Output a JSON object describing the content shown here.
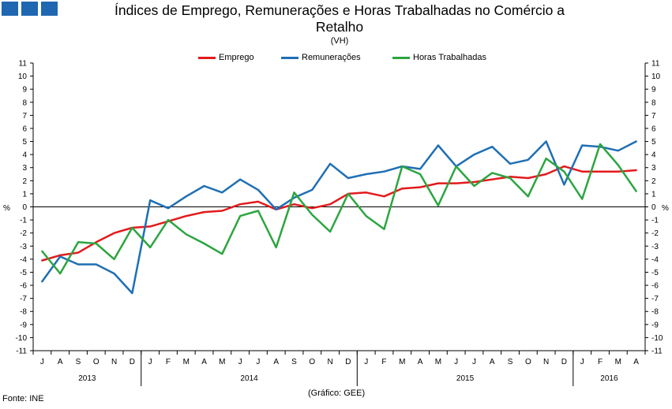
{
  "header": {
    "logo": "logo-squares",
    "title_line1": "Índices de Emprego, Remunerações e Horas Trabalhadas no Comércio a",
    "title_line2": "Retalho",
    "subtitle": "(VH)"
  },
  "axis": {
    "left_unit": "%",
    "right_unit": "%"
  },
  "footer": {
    "source": "Fonte: INE",
    "credit": "(Gráfico: GEE)"
  },
  "chart_data": {
    "type": "line",
    "title": "Índices de Emprego, Remunerações e Horas Trabalhadas no Comércio a Retalho",
    "subtitle": "(VH)",
    "ylabel": "%",
    "ylim": [
      -11,
      11
    ],
    "yticks": [
      -11,
      -10,
      -9,
      -8,
      -7,
      -6,
      -5,
      -4,
      -3,
      -2,
      -1,
      0,
      1,
      2,
      3,
      4,
      5,
      6,
      7,
      8,
      9,
      10,
      11
    ],
    "x": [
      "J",
      "A",
      "S",
      "O",
      "N",
      "D",
      "J",
      "F",
      "M",
      "A",
      "M",
      "J",
      "J",
      "A",
      "S",
      "O",
      "N",
      "D",
      "J",
      "F",
      "M",
      "A",
      "M",
      "J",
      "J",
      "A",
      "S",
      "O",
      "N",
      "D",
      "J",
      "F",
      "M",
      "A"
    ],
    "years": [
      {
        "label": "2013",
        "start": 0,
        "end": 5
      },
      {
        "label": "2014",
        "start": 6,
        "end": 17
      },
      {
        "label": "2015",
        "start": 18,
        "end": 29
      },
      {
        "label": "2016",
        "start": 30,
        "end": 33
      }
    ],
    "legend_position": "top-center",
    "series": [
      {
        "name": "Emprego",
        "color": "#e31a1c",
        "values": [
          -4.1,
          -3.7,
          -3.5,
          -2.7,
          -2.0,
          -1.6,
          -1.5,
          -1.1,
          -0.7,
          -0.4,
          -0.3,
          0.2,
          0.4,
          -0.2,
          0.2,
          -0.1,
          0.2,
          1.0,
          1.1,
          0.8,
          1.4,
          1.5,
          1.8,
          1.8,
          1.9,
          2.1,
          2.3,
          2.2,
          2.5,
          3.1,
          2.7,
          2.7,
          2.7,
          2.8
        ]
      },
      {
        "name": "Remunerações",
        "color": "#1f6fb4",
        "values": [
          -5.7,
          -3.8,
          -4.4,
          -4.4,
          -5.1,
          -6.6,
          0.5,
          -0.1,
          0.8,
          1.6,
          1.1,
          2.1,
          1.3,
          -0.2,
          0.7,
          1.3,
          3.3,
          2.2,
          2.5,
          2.7,
          3.1,
          2.9,
          4.7,
          3.1,
          4.0,
          4.6,
          3.3,
          3.6,
          5.0,
          1.7,
          4.7,
          4.6,
          4.3,
          5.0
        ]
      },
      {
        "name": "Horas Trabalhadas",
        "color": "#2ca540",
        "values": [
          -3.4,
          -5.1,
          -2.7,
          -2.8,
          -4.0,
          -1.6,
          -3.1,
          -1.0,
          -2.1,
          -2.8,
          -3.6,
          -0.7,
          -0.3,
          -3.1,
          1.1,
          -0.6,
          -1.9,
          1.0,
          -0.7,
          -1.7,
          3.1,
          2.5,
          0.1,
          3.1,
          1.6,
          2.6,
          2.2,
          0.8,
          3.7,
          2.7,
          0.6,
          4.8,
          3.2,
          1.2
        ]
      }
    ]
  }
}
